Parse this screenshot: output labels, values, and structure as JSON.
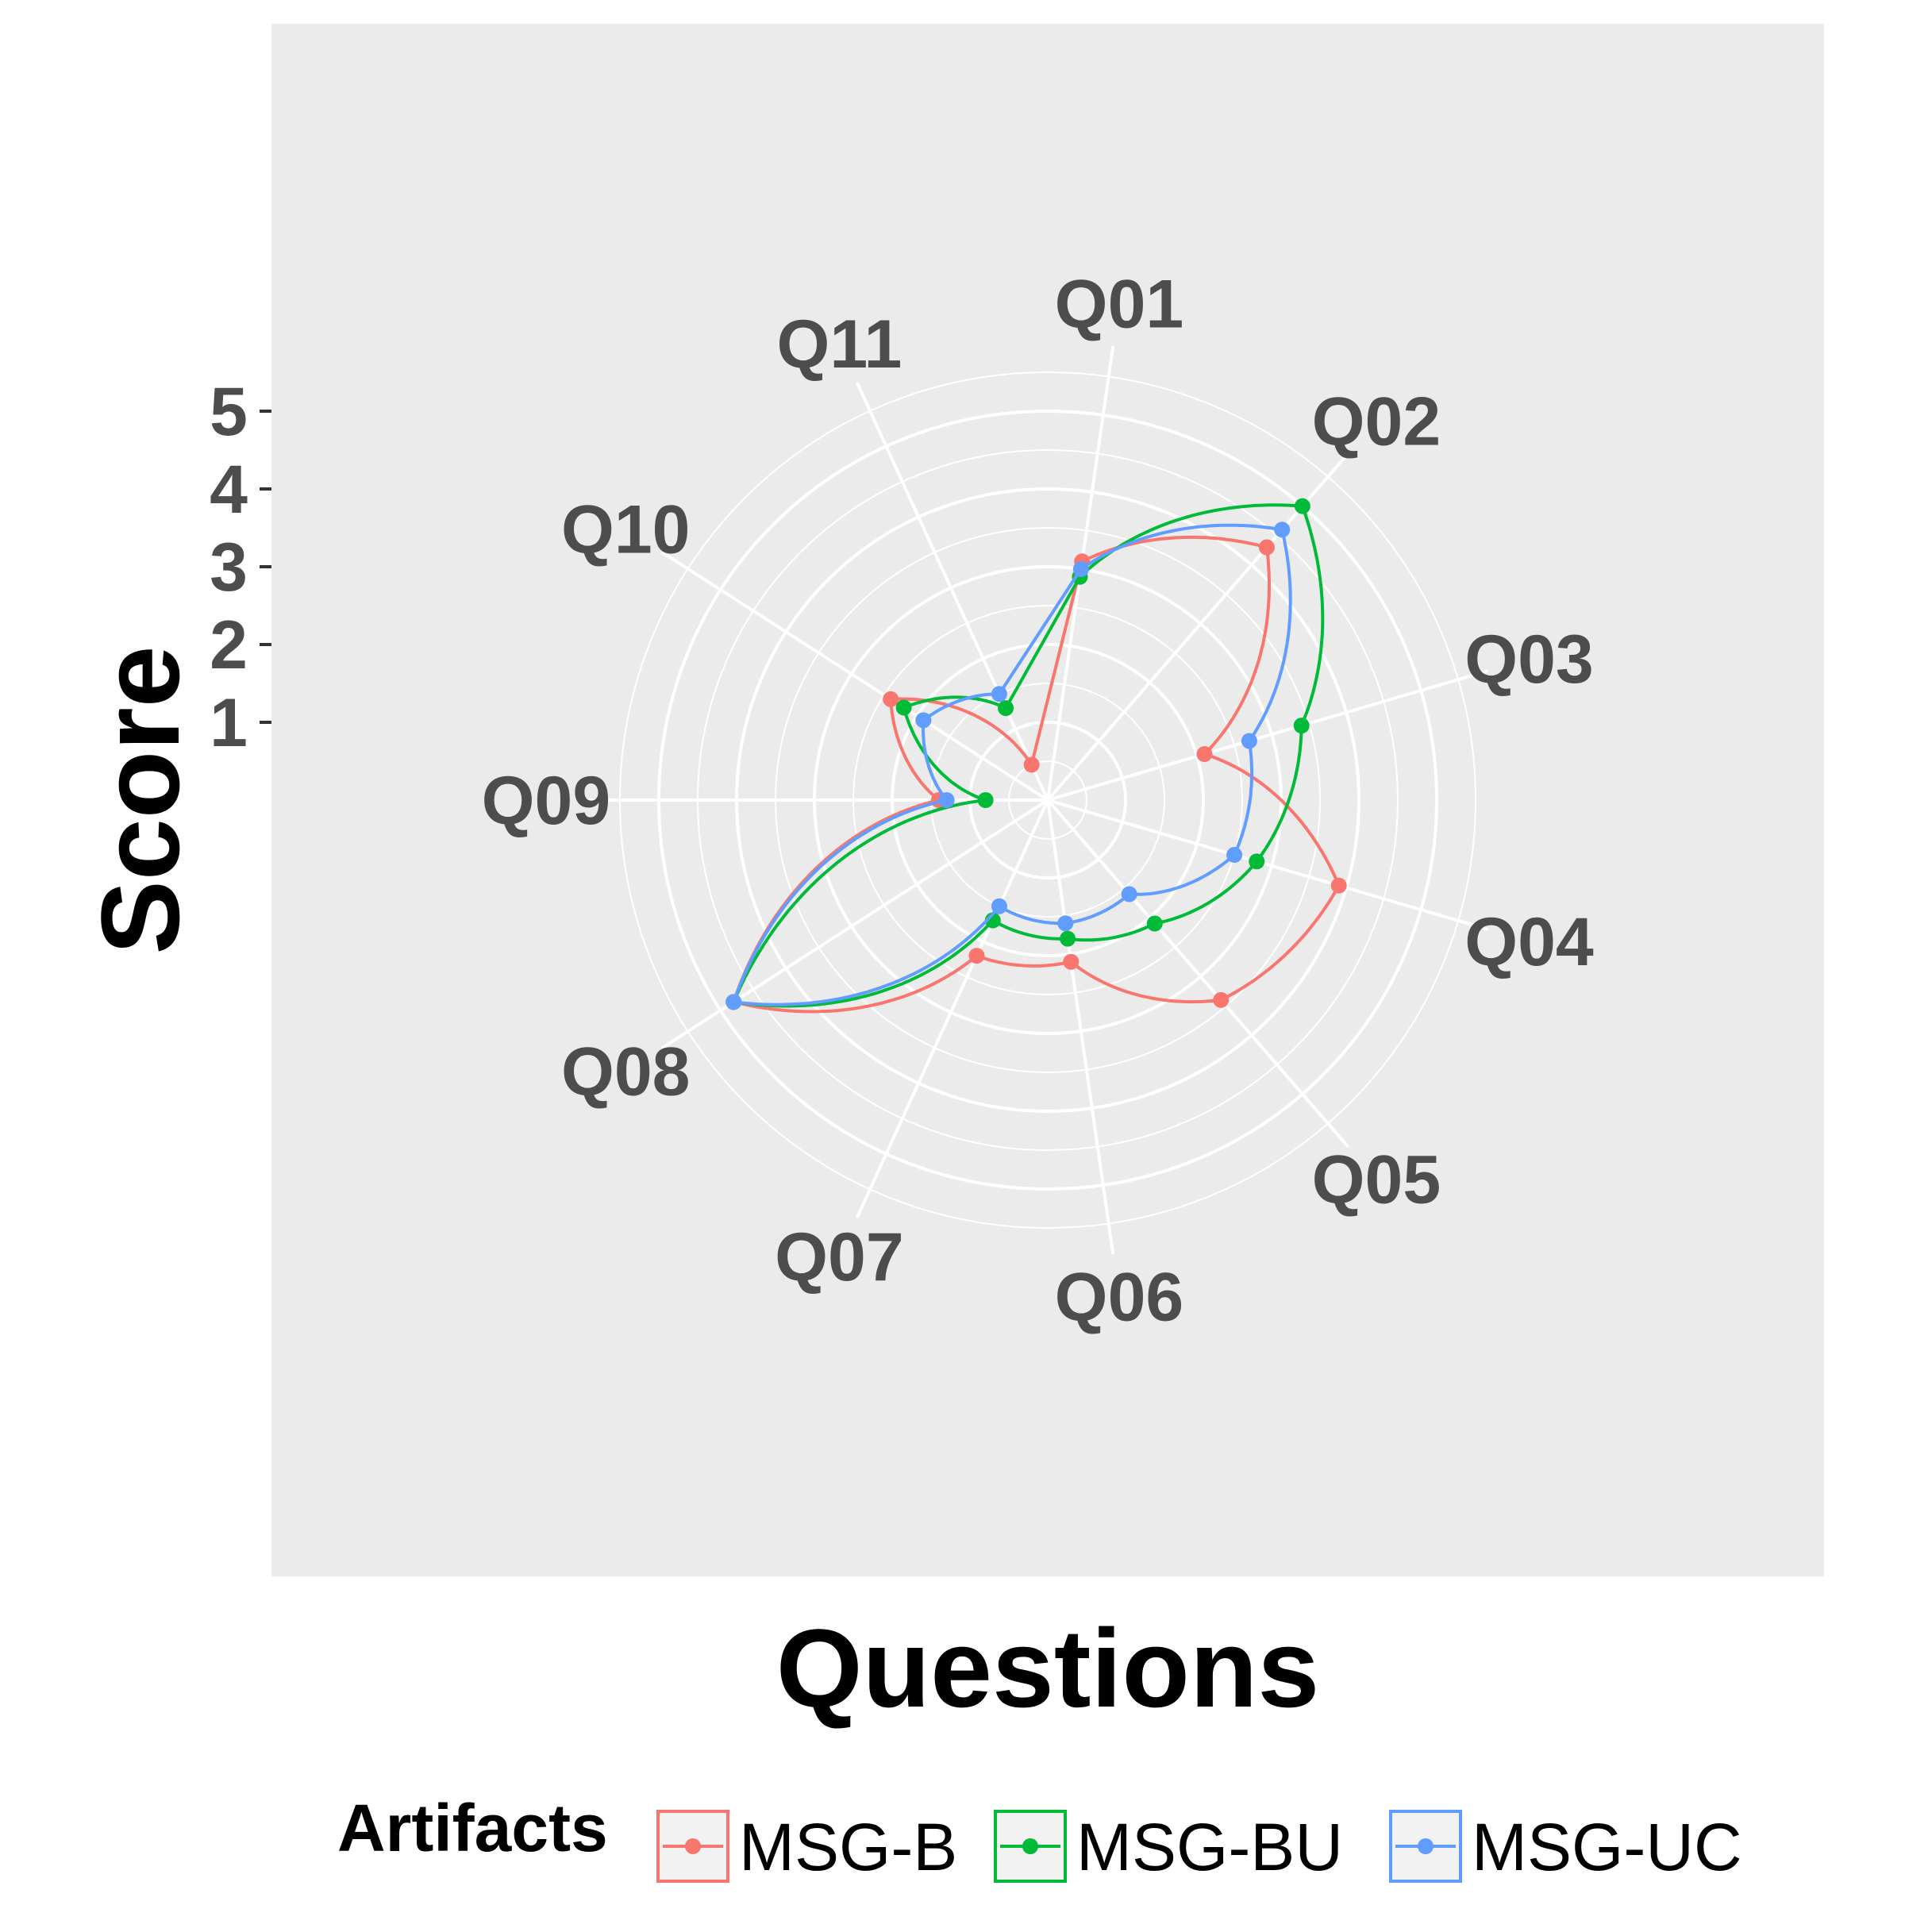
{
  "chart_data": {
    "type": "radar",
    "xlabel": "Questions",
    "ylabel": "Score",
    "categories": [
      "Q01",
      "Q02",
      "Q03",
      "Q04",
      "Q05",
      "Q06",
      "Q07",
      "Q08",
      "Q09",
      "Q10",
      "Q11"
    ],
    "y_ticks": [
      1,
      2,
      3,
      4,
      5
    ],
    "ylim": [
      0,
      5
    ],
    "legend": {
      "title": "Artifacts",
      "position": "bottom"
    },
    "grid": true,
    "series": [
      {
        "name": "MSG-B",
        "color": "#F8766D",
        "values": [
          3.1,
          4.3,
          2.1,
          3.9,
          3.4,
          2.1,
          2.2,
          4.8,
          1.4,
          2.4,
          0.5
        ]
      },
      {
        "name": "MSG-BU",
        "color": "#00BA38",
        "values": [
          2.9,
          5.0,
          3.4,
          2.8,
          2.1,
          1.8,
          1.7,
          4.8,
          0.8,
          2.2,
          1.3
        ]
      },
      {
        "name": "MSG-UC",
        "color": "#619CFF",
        "values": [
          3.0,
          4.6,
          2.7,
          2.5,
          1.6,
          1.6,
          1.5,
          4.8,
          1.3,
          1.9,
          1.5
        ]
      }
    ]
  }
}
